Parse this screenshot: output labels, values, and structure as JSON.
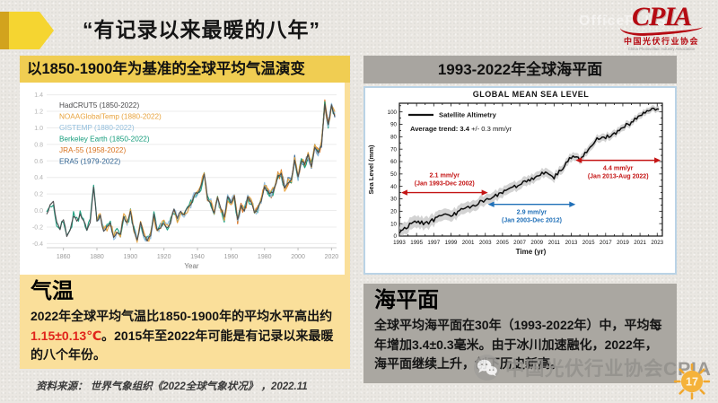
{
  "page": {
    "title": "“有记录以来最暖的八年”",
    "page_number": "17",
    "source_note": "资料来源： 世界气象组织《2022全球气象状况》 ，2022.11",
    "watermark_text": "中国光伏行业协会CPIA",
    "office_watermark": "OfficePLUS"
  },
  "logo": {
    "text": "CPIA",
    "subtitle": "中国光伏行业协会",
    "tagline": "China Photovoltaic Industry Association",
    "color": "#b50a12"
  },
  "left_panel": {
    "header": "以1850-1900年为基准的全球平均气温演变",
    "header_bg": "#f0cd52",
    "body_bg": "#fadf9a",
    "section_title": "气温",
    "body_pre": "2022年全球平均气温比1850-1900年的平均水平高出约",
    "body_highlight": "1.15±0.13℃",
    "body_post": "。2015年至2022年可能是有记录以来最暖的八个年份。",
    "highlight_color": "#e0251c"
  },
  "right_panel": {
    "header": "1993-2022年全球海平面",
    "header_bg": "#a8a5a0",
    "body_bg": "#aaa7a1",
    "section_title": "海平面",
    "body": "全球平均海平面在30年（1993-2022年）中，平均每年增加3.4±0.3毫米。由于冰川加速融化，2022年，海平面继续上升，创下历史新高。"
  },
  "chart_data": [
    {
      "id": "temperature",
      "type": "line",
      "title": "以1850-1900年为基准的全球平均气温演变",
      "xlabel": "Year",
      "ylabel": "",
      "xlim": [
        1850,
        2023
      ],
      "ylim": [
        -0.45,
        1.45
      ],
      "x_ticks": [
        1860,
        1880,
        1900,
        1920,
        1940,
        1960,
        1980,
        2000,
        2020
      ],
      "y_ticks": [
        1.4,
        1.2,
        1.0,
        0.8,
        0.6,
        0.4,
        0.2,
        0.0,
        -0.2,
        -0.4
      ],
      "grid": "horizontal",
      "legend_position": "top-left",
      "x_start": 1850,
      "x_step": 2,
      "base_values": [
        -0.05,
        0.06,
        0.1,
        -0.15,
        -0.22,
        -0.1,
        -0.3,
        -0.25,
        -0.06,
        -0.12,
        -0.05,
        -0.12,
        -0.22,
        -0.15,
        0.3,
        -0.12,
        -0.06,
        -0.26,
        -0.2,
        -0.16,
        -0.32,
        -0.26,
        -0.28,
        -0.06,
        -0.16,
        -0.02,
        -0.22,
        -0.36,
        -0.16,
        -0.3,
        -0.36,
        -0.3,
        -0.06,
        -0.26,
        -0.2,
        -0.15,
        -0.22,
        -0.12,
        0.0,
        -0.1,
        0.0,
        -0.05,
        0.02,
        0.08,
        0.18,
        0.22,
        0.28,
        0.45,
        0.15,
        0.1,
        -0.05,
        0.15,
        0.02,
        -0.1,
        0.15,
        0.1,
        0.16,
        -0.12,
        0.05,
        0.0,
        0.15,
        0.1,
        -0.02,
        0.02,
        0.12,
        0.3,
        0.22,
        0.2,
        0.26,
        0.42,
        0.45,
        0.26,
        0.35,
        0.36,
        0.62,
        0.4,
        0.6,
        0.56,
        0.66,
        0.55,
        0.76,
        0.7,
        0.8,
        1.3,
        1.02,
        1.26,
        1.15
      ],
      "series": [
        {
          "name": "HadCRUT5 (1850-2022)",
          "color": "#4a4a4c",
          "start_year": 1850
        },
        {
          "name": "NOAAGlobalTemp (1880-2022)",
          "color": "#e8a33d",
          "start_year": 1880
        },
        {
          "name": "GISTEMP (1880-2022)",
          "color": "#92bedc",
          "start_year": 1880
        },
        {
          "name": "Berkeley Earth (1850-2022)",
          "color": "#159c7b",
          "start_year": 1850
        },
        {
          "name": "JRA-55 (1958-2022)",
          "color": "#d9731f",
          "start_year": 1958
        },
        {
          "name": "ERA5 (1979-2022)",
          "color": "#2e6291",
          "start_year": 1979
        }
      ]
    },
    {
      "id": "sea_level",
      "type": "line",
      "title": "GLOBAL MEAN SEA LEVEL",
      "xlabel": "Time (yr)",
      "ylabel": "Sea Level (mm)",
      "xlim": [
        1993,
        2023.6
      ],
      "ylim": [
        0,
        107
      ],
      "x_ticks": [
        1993,
        1995,
        1997,
        1999,
        2001,
        2003,
        2005,
        2007,
        2009,
        2011,
        2013,
        2015,
        2017,
        2019,
        2021,
        2023
      ],
      "y_ticks": [
        0,
        10,
        20,
        30,
        40,
        50,
        60,
        70,
        80,
        90,
        100
      ],
      "legend": "Satellite Altimetry",
      "trend_bold": "Average trend: 3.4",
      "trend_rest": "  +/- 0.3 mm/yr",
      "line_color": "#0e0e0e",
      "band_color": "#cbcbcb",
      "years_start": 1993,
      "values": [
        3,
        8,
        12,
        10,
        13,
        17,
        16,
        20,
        23,
        26,
        29,
        32,
        35,
        38,
        42,
        45,
        47,
        52,
        47,
        55,
        64,
        62,
        70,
        78,
        80,
        82,
        88,
        91,
        97,
        101,
        103
      ],
      "annotations": [
        {
          "line1": "2.1 mm/yr",
          "line2": "(Jan 1993-Dec 2002)",
          "color": "#c41414",
          "x1": 1993.2,
          "x2": 2003.3,
          "y": 35,
          "label": "above"
        },
        {
          "line1": "2.9 mm/yr",
          "line2": "(Jan 2003-Dec 2012)",
          "color": "#2070b8",
          "x1": 2003.3,
          "x2": 2013.5,
          "y": 25.5,
          "label": "below"
        },
        {
          "line1": "4.4 mm/yr",
          "line2": "(Jan 2013-Aug 2022)",
          "color": "#c41414",
          "x1": 2013.5,
          "x2": 2023.4,
          "y": 61,
          "label": "below"
        }
      ]
    }
  ]
}
